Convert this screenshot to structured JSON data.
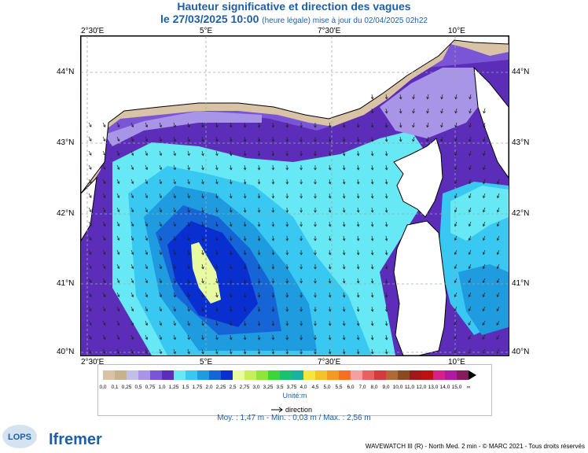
{
  "title": "Hauteur significative et direction des vagues",
  "subtitle_date": "le 27/03/2025 10:00",
  "subtitle_note": "(heure légale) mise à jour du 02/04/2025 02h22",
  "lon_ticks": [
    "2°30'E",
    "5°E",
    "7°30'E",
    "10°E"
  ],
  "lat_ticks": [
    "44°N",
    "43°N",
    "42°N",
    "41°N",
    "40°N"
  ],
  "legend": {
    "values": [
      "0,0",
      "0,1",
      "0,25",
      "0,5",
      "0,75",
      "1,0",
      "1,25",
      "1,5",
      "1,75",
      "2,0",
      "2,25",
      "2,5",
      "2,75",
      "3,0",
      "3,25",
      "3,5",
      "3,75",
      "4,0",
      "4,5",
      "5,0",
      "5,5",
      "6,0",
      "7,0",
      "8,0",
      "9,0",
      "10,0",
      "11,0",
      "12,0",
      "13,0",
      "14,0",
      "15,0",
      "∞"
    ],
    "colors": [
      "#d9c3a6",
      "#c8b28e",
      "#bfbfe8",
      "#a895e8",
      "#7a55d6",
      "#5c2db8",
      "#66e8f5",
      "#39c8f2",
      "#1f9be0",
      "#1565d6",
      "#0a2fd0",
      "#e8fba0",
      "#c6f05a",
      "#8ee63a",
      "#3dd63a",
      "#19c26f",
      "#17b2a0",
      "#f5e63a",
      "#f5c22a",
      "#f59a20",
      "#f57020",
      "#f5a0a0",
      "#e86060",
      "#d63a3a",
      "#b06a38",
      "#8a4a1f",
      "#a01a1a",
      "#c01010",
      "#d6208a",
      "#b01aa0",
      "#8a1a60"
    ],
    "unit": "Unité:m",
    "direction_label": "direction"
  },
  "stats": "Moy. : 1,47 m  -  Min. : 0,03 m / Max. : 2,56 m",
  "footer": "WAVEWATCH III (R) - North Med. 2 min - © MARC 2021 - Tous droits réservés",
  "logo_lops": "LOPS",
  "logo_ifremer": "Ifremer",
  "colors": {
    "title": "#1f5fa8",
    "land": "#ffffff",
    "coast": "#000000"
  }
}
